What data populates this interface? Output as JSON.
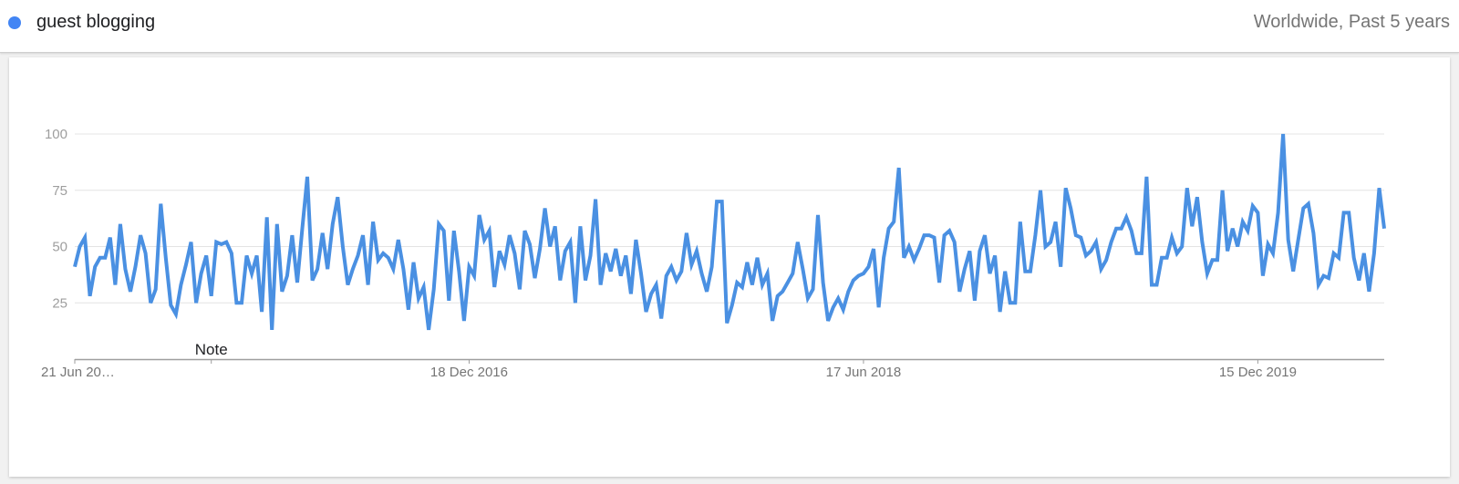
{
  "legend": {
    "term": "guest blogging",
    "scope": "Worldwide, Past 5 years",
    "series_color": "#4285f4"
  },
  "annotation": {
    "label": "Note",
    "week_index": 27
  },
  "chart_data": {
    "type": "line",
    "title": "",
    "xlabel": "",
    "ylabel": "",
    "ylim": [
      0,
      100
    ],
    "yticks": [
      25,
      50,
      75,
      100
    ],
    "grid": true,
    "x_tick_labels": [
      {
        "label": "21 Jun 20…",
        "week_index": 0
      },
      {
        "label": "18 Dec 2016",
        "week_index": 78
      },
      {
        "label": "17 Jun 2018",
        "week_index": 156
      },
      {
        "label": "15 Dec 2019",
        "week_index": 234
      }
    ],
    "line_color": "#4a90e2",
    "series": [
      {
        "name": "guest blogging",
        "values": [
          41,
          50,
          54,
          28,
          41,
          45,
          45,
          54,
          33,
          60,
          40,
          30,
          41,
          55,
          47,
          25,
          31,
          69,
          45,
          24,
          20,
          33,
          42,
          52,
          25,
          38,
          46,
          28,
          52,
          51,
          52,
          47,
          25,
          25,
          46,
          38,
          46,
          21,
          63,
          13,
          60,
          30,
          37,
          55,
          34,
          58,
          81,
          35,
          40,
          56,
          40,
          60,
          72,
          50,
          33,
          40,
          46,
          55,
          33,
          61,
          44,
          47,
          45,
          40,
          53,
          40,
          22,
          43,
          27,
          32,
          13,
          31,
          60,
          57,
          26,
          57,
          39,
          17,
          41,
          37,
          64,
          53,
          57,
          32,
          48,
          42,
          55,
          47,
          31,
          57,
          51,
          36,
          49,
          67,
          50,
          59,
          35,
          48,
          52,
          25,
          59,
          35,
          46,
          71,
          33,
          47,
          39,
          49,
          37,
          46,
          29,
          53,
          38,
          21,
          29,
          33,
          18,
          37,
          41,
          35,
          39,
          56,
          42,
          48,
          38,
          30,
          41,
          70,
          70,
          16,
          24,
          34,
          32,
          43,
          33,
          45,
          33,
          38,
          17,
          28,
          30,
          34,
          38,
          52,
          40,
          27,
          31,
          64,
          34,
          17,
          23,
          27,
          22,
          30,
          35,
          37,
          38,
          41,
          49,
          23,
          45,
          58,
          61,
          85,
          45,
          50,
          44,
          49,
          55,
          55,
          54,
          34,
          55,
          57,
          52,
          30,
          40,
          48,
          26,
          48,
          55,
          38,
          46,
          21,
          39,
          25,
          25,
          61,
          39,
          39,
          55,
          75,
          50,
          52,
          61,
          41,
          76,
          67,
          55,
          54,
          46,
          48,
          52,
          40,
          44,
          52,
          58,
          58,
          63,
          57,
          47,
          47,
          81,
          33,
          33,
          45,
          45,
          54,
          47,
          50,
          76,
          59,
          72,
          52,
          38,
          44,
          44,
          75,
          48,
          58,
          50,
          61,
          57,
          68,
          65,
          37,
          51,
          47,
          65,
          100,
          53,
          39,
          53,
          67,
          69,
          56,
          33,
          37,
          36,
          47,
          45,
          65,
          65,
          45,
          35,
          47,
          30,
          47,
          76,
          58
        ]
      }
    ]
  }
}
